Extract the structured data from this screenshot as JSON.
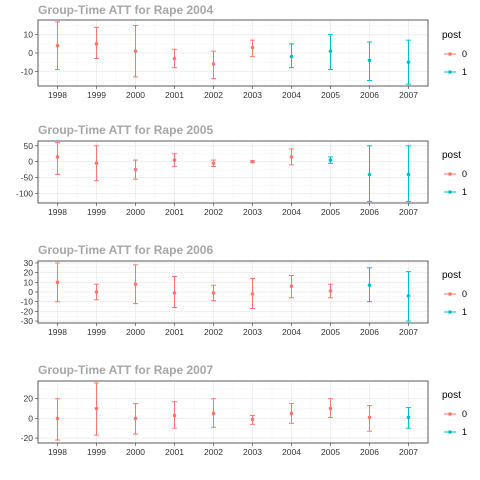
{
  "chart_data": [
    {
      "type": "scatter",
      "title": "Group-Time ATT for Rape 2004",
      "categories": [
        "1998",
        "1999",
        "2000",
        "2001",
        "2002",
        "2003",
        "2004",
        "2005",
        "2006",
        "2007"
      ],
      "legend": {
        "title": "post",
        "entries": [
          "0",
          "1"
        ],
        "placement": "right"
      },
      "ylim": [
        -18,
        18
      ],
      "yticks": [
        -10,
        0,
        10
      ],
      "grid": true,
      "series": [
        {
          "name": "0",
          "color": "#F8766D",
          "values": [
            4,
            5,
            1,
            -3,
            -6,
            3
          ],
          "lower": [
            -9,
            -3,
            -13,
            -8,
            -14,
            -2
          ],
          "upper": [
            17,
            14,
            15,
            2,
            1,
            7
          ]
        },
        {
          "name": "1",
          "color": "#00BFC4",
          "values": [
            -2,
            1,
            -4,
            -5
          ],
          "lower": [
            -8,
            -9,
            -15,
            -17
          ],
          "upper": [
            5,
            10,
            6,
            7
          ]
        }
      ]
    },
    {
      "type": "scatter",
      "title": "Group-Time ATT for Rape 2005",
      "categories": [
        "1998",
        "1999",
        "2000",
        "2001",
        "2002",
        "2003",
        "2004",
        "2005",
        "2006",
        "2007"
      ],
      "legend": {
        "title": "post",
        "entries": [
          "0",
          "1"
        ],
        "placement": "right"
      },
      "ylim": [
        -130,
        65
      ],
      "yticks": [
        -100,
        -50,
        0,
        50
      ],
      "grid": true,
      "series": [
        {
          "name": "0",
          "color": "#F8766D",
          "values": [
            15,
            -5,
            -25,
            5,
            -5,
            0,
            15
          ],
          "lower": [
            -40,
            -60,
            -55,
            -15,
            -15,
            -3,
            -10
          ],
          "upper": [
            60,
            50,
            5,
            25,
            5,
            3,
            40
          ]
        },
        {
          "name": "1",
          "color": "#00BFC4",
          "values": [
            5,
            -40,
            -40
          ],
          "lower": [
            -5,
            -125,
            -125
          ],
          "upper": [
            15,
            50,
            50
          ]
        }
      ]
    },
    {
      "type": "scatter",
      "title": "Group-Time ATT for Rape 2006",
      "categories": [
        "1998",
        "1999",
        "2000",
        "2001",
        "2002",
        "2003",
        "2004",
        "2005",
        "2006",
        "2007"
      ],
      "legend": {
        "title": "post",
        "entries": [
          "0",
          "1"
        ],
        "placement": "right"
      },
      "ylim": [
        -32,
        32
      ],
      "yticks": [
        -30,
        -20,
        -10,
        0,
        10,
        20,
        30
      ],
      "grid": true,
      "series": [
        {
          "name": "0",
          "color": "#F8766D",
          "values": [
            10,
            0,
            8,
            -1,
            -1,
            -2,
            6,
            1
          ],
          "lower": [
            -10,
            -8,
            -12,
            -16,
            -9,
            -17,
            -6,
            -6
          ],
          "upper": [
            30,
            8,
            28,
            16,
            7,
            14,
            17,
            8
          ]
        },
        {
          "name": "1",
          "color": "#00BFC4",
          "values": [
            7,
            -4
          ],
          "lower": [
            -10,
            -30
          ],
          "upper": [
            25,
            21
          ]
        }
      ]
    },
    {
      "type": "scatter",
      "title": "Group-Time ATT for Rape 2007",
      "categories": [
        "1998",
        "1999",
        "2000",
        "2001",
        "2002",
        "2003",
        "2004",
        "2005",
        "2006",
        "2007"
      ],
      "legend": {
        "title": "post",
        "entries": [
          "0",
          "1"
        ],
        "placement": "right"
      },
      "ylim": [
        -25,
        38
      ],
      "yticks": [
        -20,
        0,
        20
      ],
      "grid": true,
      "series": [
        {
          "name": "0",
          "color": "#F8766D",
          "values": [
            0,
            10,
            0,
            3,
            5,
            -1,
            5,
            10,
            1
          ],
          "lower": [
            -22,
            -17,
            -16,
            -10,
            -9,
            -6,
            -5,
            1,
            -13
          ],
          "upper": [
            20,
            36,
            15,
            17,
            20,
            3,
            15,
            20,
            13
          ]
        },
        {
          "name": "1",
          "color": "#00BFC4",
          "values": [
            1
          ],
          "lower": [
            -10
          ],
          "upper": [
            11
          ]
        }
      ]
    }
  ]
}
